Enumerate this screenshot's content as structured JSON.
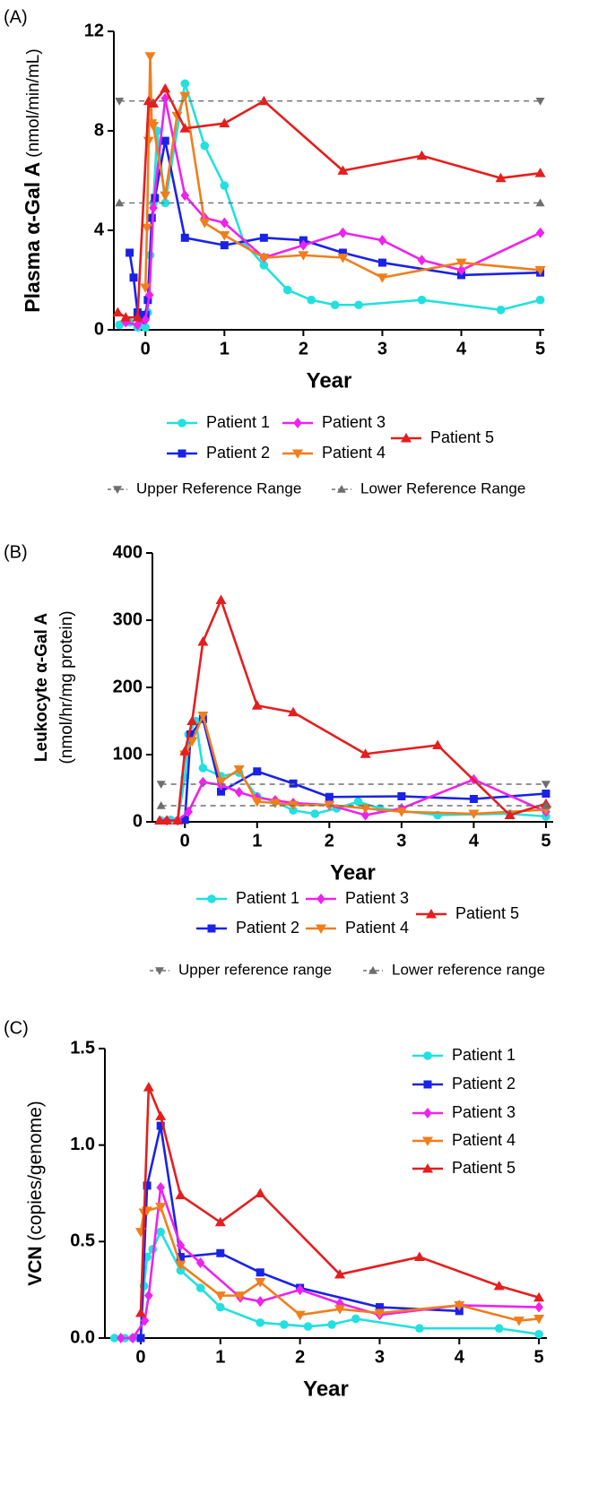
{
  "chart_data": [
    {
      "type": "line",
      "panel_label": "(A)",
      "xlabel": "Year",
      "ylabel_bold": "Plasma α-Gal A",
      "ylabel_plain": "(nmol/min/mL)",
      "xlim": [
        -0.4,
        5.05
      ],
      "ylim": [
        0,
        12
      ],
      "xticks": [
        0,
        1,
        2,
        3,
        4,
        5
      ],
      "yticks": [
        0,
        4,
        8,
        12
      ],
      "series": [
        {
          "name": "Patient 1",
          "color": "#22e0e0",
          "marker": "circle",
          "x": [
            -0.33,
            -0.2,
            -0.1,
            0,
            0.03,
            0.06,
            0.1,
            0.15,
            0.25,
            0.5,
            0.75,
            1,
            1.25,
            1.5,
            1.8,
            2.1,
            2.4,
            2.7,
            3.5,
            4.5,
            5
          ],
          "y": [
            0.2,
            0.3,
            0.1,
            0.1,
            0.7,
            3.0,
            5.1,
            8.0,
            5.1,
            9.9,
            7.4,
            5.8,
            3.5,
            2.6,
            1.6,
            1.2,
            1.0,
            1.0,
            1.2,
            0.8,
            1.2
          ]
        },
        {
          "name": "Patient 2",
          "color": "#1a22e8",
          "marker": "square",
          "x": [
            -0.2,
            -0.15,
            -0.1,
            -0.05,
            0,
            0.03,
            0.08,
            0.12,
            0.25,
            0.5,
            1,
            1.5,
            2,
            2.5,
            3,
            4,
            5
          ],
          "y": [
            3.1,
            2.1,
            0.7,
            0.4,
            0.6,
            1.2,
            4.5,
            5.3,
            7.6,
            3.7,
            3.4,
            3.7,
            3.6,
            3.1,
            2.7,
            2.2,
            2.3
          ]
        },
        {
          "name": "Patient 3",
          "color": "#ee22ee",
          "marker": "diamond",
          "x": [
            -0.25,
            -0.1,
            0,
            0.05,
            0.1,
            0.25,
            0.5,
            0.75,
            1,
            1.5,
            2,
            2.5,
            3,
            3.5,
            4,
            5
          ],
          "y": [
            0.3,
            0.2,
            0.4,
            1.4,
            4.9,
            9.3,
            5.4,
            4.5,
            4.3,
            2.9,
            3.4,
            3.9,
            3.6,
            2.8,
            2.4,
            3.9
          ]
        },
        {
          "name": "Patient 4",
          "color": "#f07e1c",
          "marker": "triangle-down",
          "x": [
            0,
            0.02,
            0.04,
            0.06,
            0.08,
            0.1,
            0.25,
            0.4,
            0.5,
            0.75,
            1,
            1.5,
            2,
            2.5,
            3,
            4,
            5
          ],
          "y": [
            1.7,
            4.1,
            7.6,
            11.0,
            8.3,
            8.2,
            5.4,
            8.6,
            9.4,
            4.3,
            3.8,
            2.9,
            3.0,
            2.9,
            2.1,
            2.7,
            2.4
          ]
        },
        {
          "name": "Patient 5",
          "color": "#e51e1e",
          "marker": "triangle-up",
          "x": [
            -0.35,
            -0.25,
            -0.1,
            0.04,
            0.1,
            0.25,
            0.5,
            1,
            1.5,
            2.5,
            3.5,
            4.5,
            5
          ],
          "y": [
            0.7,
            0.5,
            0.5,
            9.2,
            9.1,
            9.7,
            8.1,
            8.3,
            9.2,
            6.4,
            7.0,
            6.1,
            6.3
          ]
        },
        {
          "name": "Upper Reference Range",
          "color": "#6e6e6e",
          "marker": "triangle-down",
          "dashed": true,
          "x": [
            -0.33,
            5
          ],
          "y": [
            9.2,
            9.2
          ]
        },
        {
          "name": "Lower Reference Range",
          "color": "#6e6e6e",
          "marker": "triangle-up",
          "dashed": true,
          "x": [
            -0.33,
            5
          ],
          "y": [
            5.1,
            5.1
          ]
        }
      ]
    },
    {
      "type": "line",
      "panel_label": "(B)",
      "xlabel": "Year",
      "ylabel_bold": "Leukocyte α-Gal A",
      "ylabel_plain": "(nmol/hr/mg protein)",
      "xlim": [
        -0.45,
        5.1
      ],
      "ylim": [
        0,
        400
      ],
      "xticks": [
        0,
        1,
        2,
        3,
        4,
        5
      ],
      "yticks": [
        0,
        100,
        200,
        300,
        400
      ],
      "series": [
        {
          "name": "Patient 1",
          "color": "#22e0e0",
          "marker": "circle",
          "x": [
            -0.33,
            -0.2,
            -0.1,
            0,
            0.05,
            0.15,
            0.25,
            0.5,
            0.75,
            1,
            1.25,
            1.5,
            1.8,
            2.1,
            2.4,
            2.7,
            3.5,
            4.5,
            5
          ],
          "y": [
            2,
            3,
            2,
            66,
            130,
            150,
            80,
            68,
            73,
            38,
            30,
            17,
            12,
            20,
            30,
            20,
            10,
            12,
            8
          ]
        },
        {
          "name": "Patient 2",
          "color": "#1a22e8",
          "marker": "square",
          "x": [
            0,
            0.08,
            0.25,
            0.5,
            1,
            1.5,
            2,
            3,
            4,
            5
          ],
          "y": [
            3,
            130,
            153,
            45,
            75,
            57,
            37,
            38,
            34,
            42
          ]
        },
        {
          "name": "Patient 3",
          "color": "#ee22ee",
          "marker": "diamond",
          "x": [
            -0.25,
            -0.1,
            0.05,
            0.25,
            0.5,
            0.75,
            1,
            1.25,
            1.5,
            2,
            2.5,
            3,
            4,
            5
          ],
          "y": [
            2,
            2,
            15,
            59,
            55,
            44,
            36,
            32,
            28,
            25,
            10,
            20,
            63,
            15
          ]
        },
        {
          "name": "Patient 4",
          "color": "#f07e1c",
          "marker": "triangle-down",
          "x": [
            0,
            0.1,
            0.25,
            0.5,
            0.75,
            1,
            1.25,
            1.5,
            2,
            2.5,
            3,
            4,
            5
          ],
          "y": [
            100,
            120,
            158,
            60,
            78,
            30,
            28,
            25,
            25,
            20,
            15,
            12,
            18
          ]
        },
        {
          "name": "Patient 5",
          "color": "#e51e1e",
          "marker": "triangle-up",
          "x": [
            -0.35,
            -0.25,
            -0.1,
            0,
            0.1,
            0.25,
            0.5,
            1,
            1.5,
            2.5,
            3.5,
            4.5,
            5
          ],
          "y": [
            2,
            2,
            2,
            105,
            150,
            268,
            330,
            173,
            163,
            101,
            114,
            10,
            27
          ]
        },
        {
          "name": "Upper reference range",
          "color": "#6e6e6e",
          "marker": "triangle-down",
          "dashed": true,
          "x": [
            -0.33,
            5
          ],
          "y": [
            56,
            56
          ]
        },
        {
          "name": "Lower reference range",
          "color": "#6e6e6e",
          "marker": "triangle-up",
          "dashed": true,
          "x": [
            -0.33,
            5
          ],
          "y": [
            24,
            24
          ]
        }
      ]
    },
    {
      "type": "line",
      "panel_label": "(C)",
      "xlabel": "Year",
      "ylabel_bold": "VCN",
      "ylabel_plain": " (copies/genome)",
      "xlim": [
        -0.45,
        5.1
      ],
      "ylim": [
        0,
        1.5
      ],
      "xticks": [
        0,
        1,
        2,
        3,
        4,
        5
      ],
      "yticks": [
        0.0,
        0.5,
        1.0,
        1.5
      ],
      "ytick_labels": [
        "0.0",
        "0.5",
        "1.0",
        "1.5"
      ],
      "series": [
        {
          "name": "Patient 1",
          "color": "#22e0e0",
          "marker": "circle",
          "x": [
            -0.33,
            -0.2,
            -0.1,
            0,
            0.04,
            0.08,
            0.15,
            0.25,
            0.5,
            0.75,
            1,
            1.5,
            1.8,
            2.1,
            2.4,
            2.7,
            3.5,
            4.5,
            5
          ],
          "y": [
            0.0,
            0.0,
            0.0,
            0.0,
            0.27,
            0.42,
            0.46,
            0.55,
            0.35,
            0.26,
            0.16,
            0.08,
            0.07,
            0.06,
            0.07,
            0.1,
            0.05,
            0.05,
            0.02
          ]
        },
        {
          "name": "Patient 2",
          "color": "#1a22e8",
          "marker": "square",
          "x": [
            0,
            0.08,
            0.25,
            0.5,
            1,
            1.5,
            2,
            3,
            4
          ],
          "y": [
            0.0,
            0.79,
            1.1,
            0.42,
            0.44,
            0.34,
            0.26,
            0.16,
            0.14
          ]
        },
        {
          "name": "Patient 3",
          "color": "#ee22ee",
          "marker": "diamond",
          "x": [
            -0.25,
            -0.1,
            0.05,
            0.1,
            0.25,
            0.5,
            0.75,
            1.25,
            1.5,
            2,
            2.5,
            3,
            4,
            5
          ],
          "y": [
            0.0,
            0.0,
            0.09,
            0.22,
            0.78,
            0.48,
            0.39,
            0.21,
            0.19,
            0.25,
            0.18,
            0.12,
            0.17,
            0.16
          ]
        },
        {
          "name": "Patient 4",
          "color": "#f07e1c",
          "marker": "triangle-down",
          "x": [
            0,
            0.04,
            0.08,
            0.25,
            0.5,
            1,
            1.25,
            1.5,
            2,
            2.5,
            3,
            4,
            4.75,
            5
          ],
          "y": [
            0.55,
            0.65,
            0.66,
            0.68,
            0.38,
            0.22,
            0.22,
            0.29,
            0.12,
            0.15,
            0.13,
            0.17,
            0.09,
            0.1
          ]
        },
        {
          "name": "Patient 5",
          "color": "#e51e1e",
          "marker": "triangle-up",
          "x": [
            0,
            0.1,
            0.25,
            0.5,
            1,
            1.5,
            2.5,
            3.5,
            4.5,
            5
          ],
          "y": [
            0.13,
            1.3,
            1.15,
            0.74,
            0.6,
            0.75,
            0.33,
            0.42,
            0.27,
            0.21
          ]
        }
      ]
    }
  ]
}
